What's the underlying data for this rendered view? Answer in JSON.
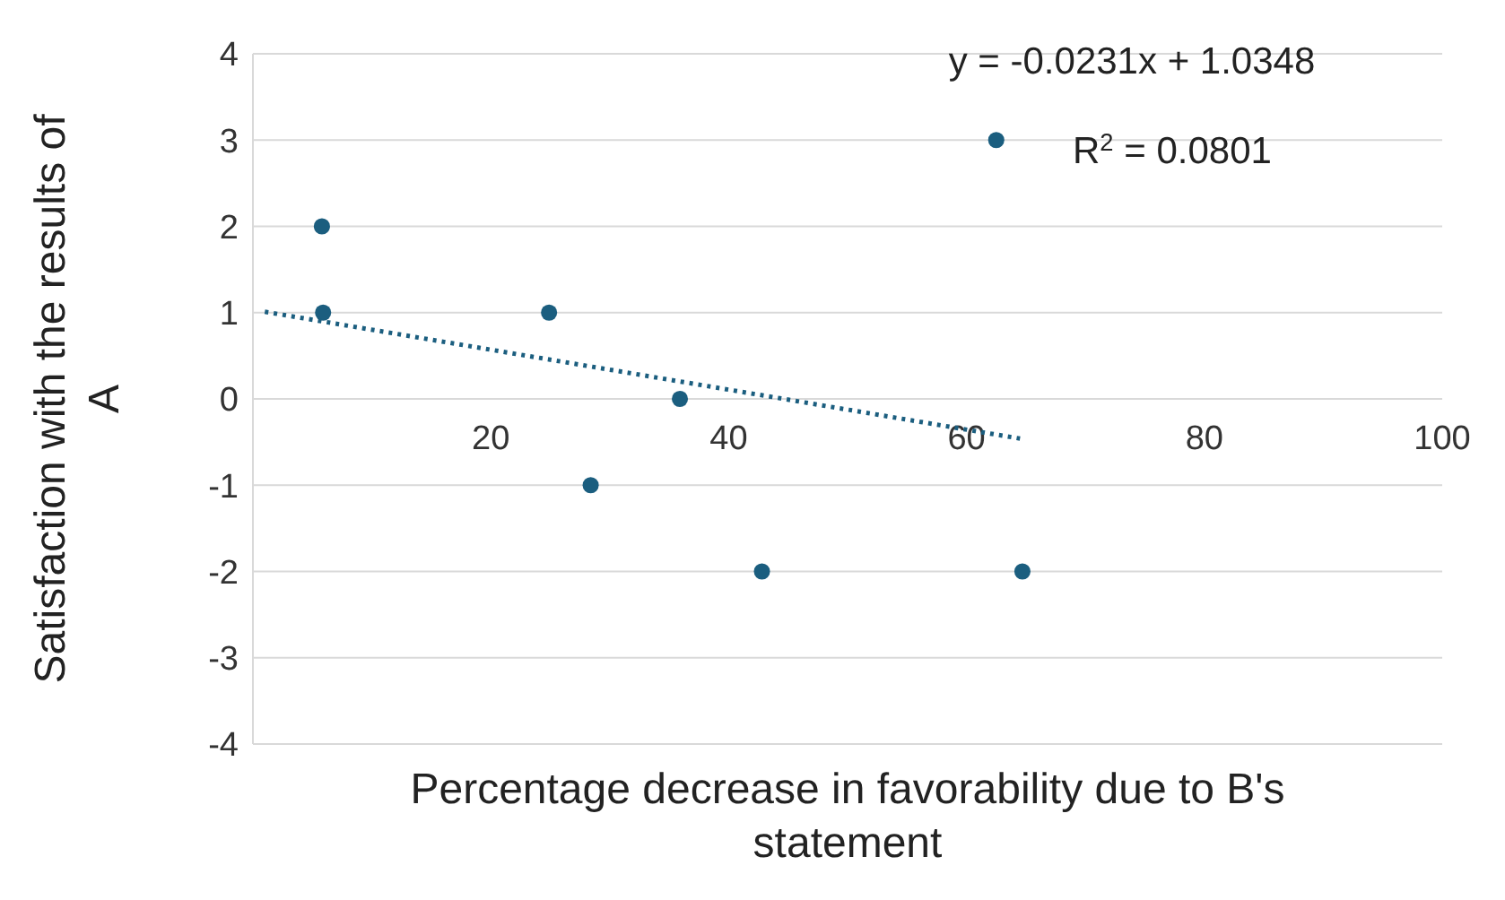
{
  "chart_data": {
    "type": "scatter",
    "xlabel": "Percentage decrease in favorability due to B's statement",
    "ylabel": "Satisfaction with the results of A",
    "xlim": [
      0,
      100
    ],
    "ylim": [
      -4,
      4
    ],
    "xticks": [
      20,
      40,
      60,
      80,
      100
    ],
    "yticks": [
      -4,
      -3,
      -2,
      -1,
      0,
      1,
      2,
      3,
      4
    ],
    "grid": "y",
    "marker": "circle",
    "series": [
      {
        "color": "#1b5e7f",
        "x": [
          5.8,
          5.9,
          24.9,
          35.9,
          28.4,
          42.8,
          64.7,
          62.5
        ],
        "values": [
          2,
          1,
          1,
          0,
          -1,
          -2,
          -2,
          3
        ]
      },
      {
        "type": "line",
        "color": "#1b5e7f",
        "line_style": "dotted",
        "marker": "none",
        "x": [
          1,
          64.5
        ],
        "values": [
          1.01,
          -0.46
        ]
      }
    ],
    "annotations": [
      "y = -0.0231x + 1.0348",
      "R$^{2}$ = 0.0801"
    ]
  }
}
